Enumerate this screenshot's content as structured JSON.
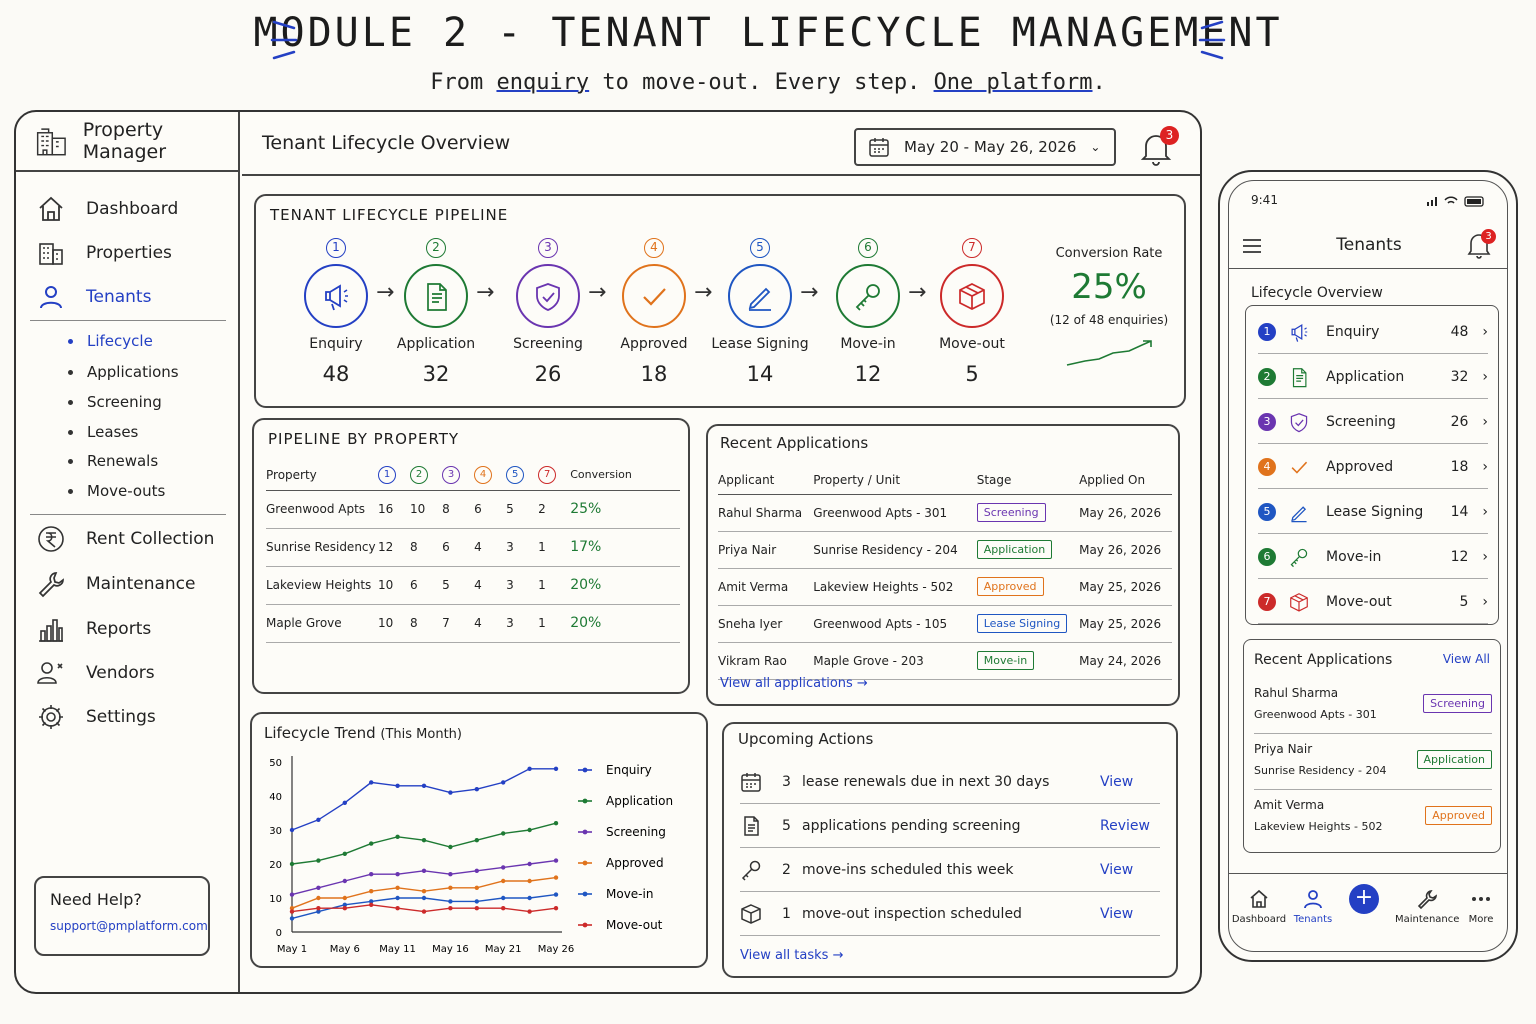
{
  "header": {
    "title": "MODULE 2 - TENANT LIFECYCLE MANAGEMENT",
    "subtitle_parts": [
      "From",
      "enquiry",
      "to move-out. Every step.",
      "One platform",
      "."
    ]
  },
  "sidebar": {
    "brand": "Property Manager",
    "items": [
      {
        "label": "Dashboard",
        "icon": "home-icon"
      },
      {
        "label": "Properties",
        "icon": "building-icon"
      },
      {
        "label": "Tenants",
        "icon": "user-icon"
      },
      {
        "label": "Rent Collection",
        "icon": "rupee-icon"
      },
      {
        "label": "Maintenance",
        "icon": "wrench-icon"
      },
      {
        "label": "Reports",
        "icon": "bar-chart-icon"
      },
      {
        "label": "Vendors",
        "icon": "vendors-icon"
      },
      {
        "label": "Settings",
        "icon": "gear-icon"
      }
    ],
    "subitems": [
      "Lifecycle",
      "Applications",
      "Screening",
      "Leases",
      "Renewals",
      "Move-outs"
    ],
    "help_title": "Need Help?",
    "help_email": "support@pmplatform.com"
  },
  "topbar": {
    "title": "Tenant Lifecycle Overview",
    "date_range": "May 20 - May 26, 2026",
    "notifications": "3"
  },
  "pipeline": {
    "title": "TENANT LIFECYCLE PIPELINE",
    "stages": [
      {
        "num": "1",
        "label": "Enquiry",
        "value": "48",
        "color": "#2440c4"
      },
      {
        "num": "2",
        "label": "Application",
        "value": "32",
        "color": "#1e7a34"
      },
      {
        "num": "3",
        "label": "Screening",
        "value": "26",
        "color": "#6a35b0"
      },
      {
        "num": "4",
        "label": "Approved",
        "value": "18",
        "color": "#e0731c"
      },
      {
        "num": "5",
        "label": "Lease Signing",
        "value": "14",
        "color": "#1f56c2"
      },
      {
        "num": "6",
        "label": "Move-in",
        "value": "12",
        "color": "#1e7a34"
      },
      {
        "num": "7",
        "label": "Move-out",
        "value": "5",
        "color": "#cc2a2a"
      }
    ],
    "conversion_label": "Conversion Rate",
    "conversion_value": "25%",
    "conversion_note": "(12 of 48 enquiries)"
  },
  "by_property": {
    "title": "PIPELINE BY PROPERTY",
    "col_property": "Property",
    "col_conversion": "Conversion",
    "rows": [
      {
        "name": "Greenwood Apts",
        "vals": [
          "16",
          "10",
          "8",
          "6",
          "5",
          "2"
        ],
        "conv": "25%"
      },
      {
        "name": "Sunrise Residency",
        "vals": [
          "12",
          "8",
          "6",
          "4",
          "3",
          "1"
        ],
        "conv": "17%"
      },
      {
        "name": "Lakeview Heights",
        "vals": [
          "10",
          "6",
          "5",
          "4",
          "3",
          "1"
        ],
        "conv": "20%"
      },
      {
        "name": "Maple Grove",
        "vals": [
          "10",
          "8",
          "7",
          "4",
          "3",
          "1"
        ],
        "conv": "20%"
      }
    ]
  },
  "recent": {
    "title": "Recent Applications",
    "cols": [
      "Applicant",
      "Property / Unit",
      "Stage",
      "Applied On"
    ],
    "rows": [
      {
        "applicant": "Rahul Sharma",
        "unit": "Greenwood Apts - 301",
        "stage": "Screening",
        "stage_color": "#6a35b0",
        "date": "May 26, 2026"
      },
      {
        "applicant": "Priya Nair",
        "unit": "Sunrise Residency - 204",
        "stage": "Application",
        "stage_color": "#1e7a34",
        "date": "May 26, 2026"
      },
      {
        "applicant": "Amit Verma",
        "unit": "Lakeview Heights - 502",
        "stage": "Approved",
        "stage_color": "#e0731c",
        "date": "May 25, 2026"
      },
      {
        "applicant": "Sneha Iyer",
        "unit": "Greenwood Apts - 105",
        "stage": "Lease Signing",
        "stage_color": "#1f56c2",
        "date": "May 25, 2026"
      },
      {
        "applicant": "Vikram Rao",
        "unit": "Maple Grove - 203",
        "stage": "Move-in",
        "stage_color": "#1e7a34",
        "date": "May 24, 2026"
      }
    ],
    "view_all": "View all applications →"
  },
  "chart_data": {
    "type": "line",
    "title": "Lifecycle Trend",
    "subtitle": "(This Month)",
    "x": [
      "May 1",
      "May 3",
      "May 6",
      "May 8",
      "May 11",
      "May 13",
      "May 16",
      "May 18",
      "May 21",
      "May 23",
      "May 26"
    ],
    "xticks": [
      "May 1",
      "May 6",
      "May 11",
      "May 16",
      "May 21",
      "May 26"
    ],
    "yticks": [
      "50",
      "40",
      "30",
      "20",
      "10",
      "0"
    ],
    "ylim": [
      0,
      50
    ],
    "series": [
      {
        "name": "Enquiry",
        "color": "#2440c4",
        "values": [
          30,
          33,
          38,
          44,
          43,
          43,
          41,
          42,
          44,
          48,
          48
        ]
      },
      {
        "name": "Application",
        "color": "#1e7a34",
        "values": [
          20,
          21,
          23,
          26,
          28,
          27,
          25,
          27,
          29,
          30,
          32
        ]
      },
      {
        "name": "Screening",
        "color": "#6a35b0",
        "values": [
          11,
          13,
          15,
          17,
          17,
          18,
          17,
          18,
          19,
          20,
          21
        ]
      },
      {
        "name": "Approved",
        "color": "#e0731c",
        "values": [
          7,
          10,
          10,
          12,
          13,
          12,
          13,
          13,
          15,
          15,
          16
        ]
      },
      {
        "name": "Move-in",
        "color": "#1f56c2",
        "values": [
          4,
          6,
          8,
          9,
          10,
          10,
          9,
          9,
          10,
          10,
          11
        ]
      },
      {
        "name": "Move-out",
        "color": "#cc2a2a",
        "values": [
          6,
          7,
          7,
          8,
          7,
          6,
          7,
          7,
          7,
          6,
          7
        ]
      }
    ]
  },
  "upcoming": {
    "title": "Upcoming Actions",
    "items": [
      {
        "count": "3",
        "text": "lease renewals due in next 30 days",
        "action": "View",
        "icon": "calendar-icon"
      },
      {
        "count": "5",
        "text": "applications pending screening",
        "action": "Review",
        "icon": "document-icon"
      },
      {
        "count": "2",
        "text": "move-ins scheduled this week",
        "action": "View",
        "icon": "key-icon"
      },
      {
        "count": "1",
        "text": "move-out inspection scheduled",
        "action": "View",
        "icon": "box-icon"
      }
    ],
    "view_all": "View all tasks →"
  },
  "mobile": {
    "time": "9:41",
    "title": "Tenants",
    "notifications": "3",
    "overview_title": "Lifecycle Overview",
    "recent_title": "Recent Applications",
    "view_all": "View All",
    "recent": [
      {
        "name": "Rahul Sharma",
        "unit": "Greenwood Apts - 301",
        "stage": "Screening",
        "color": "#6a35b0"
      },
      {
        "name": "Priya Nair",
        "unit": "Sunrise Residency - 204",
        "stage": "Application",
        "color": "#1e7a34"
      },
      {
        "name": "Amit Verma",
        "unit": "Lakeview Heights - 502",
        "stage": "Approved",
        "color": "#e0731c"
      }
    ],
    "tabs": [
      "Dashboard",
      "Tenants",
      "Maintenance",
      "More"
    ]
  }
}
